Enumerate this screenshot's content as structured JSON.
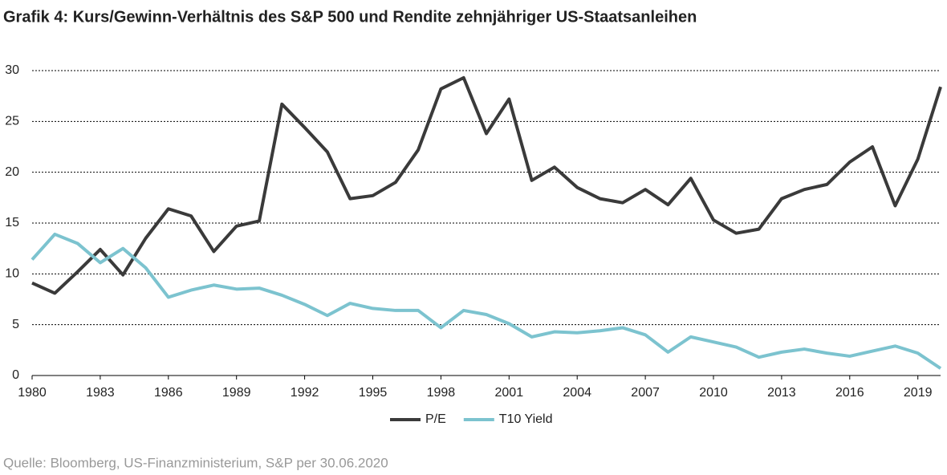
{
  "chart_data": {
    "type": "line",
    "title": "Grafik 4: Kurs/Gewinn-Verhältnis des S&P 500 und Rendite zehnjähriger US-Staatsanleihen",
    "source": "Quelle: Bloomberg, US-Finanzministerium, S&P per 30.06.2020",
    "x": [
      1980,
      1981,
      1982,
      1983,
      1984,
      1985,
      1986,
      1987,
      1988,
      1989,
      1990,
      1991,
      1992,
      1993,
      1994,
      1995,
      1996,
      1997,
      1998,
      1999,
      2000,
      2001,
      2002,
      2003,
      2004,
      2005,
      2006,
      2007,
      2008,
      2009,
      2010,
      2011,
      2012,
      2013,
      2014,
      2015,
      2016,
      2017,
      2018,
      2019,
      2020
    ],
    "series": [
      {
        "name": "P/E",
        "color": "#3a3a3a",
        "values": [
          9.1,
          8.1,
          10.2,
          12.4,
          9.9,
          13.5,
          16.4,
          15.7,
          12.2,
          14.7,
          15.2,
          26.7,
          24.4,
          22.0,
          17.4,
          17.7,
          19.0,
          22.2,
          28.2,
          29.3,
          23.8,
          27.2,
          19.2,
          20.5,
          18.5,
          17.4,
          17.0,
          18.3,
          16.8,
          19.4,
          15.3,
          14.0,
          14.4,
          17.4,
          18.3,
          18.8,
          21.0,
          22.5,
          16.7,
          21.3,
          28.4
        ]
      },
      {
        "name": "T10 Yield",
        "color": "#7cc3cf",
        "values": [
          11.4,
          13.9,
          13.0,
          11.1,
          12.5,
          10.6,
          7.7,
          8.4,
          8.9,
          8.5,
          8.6,
          7.9,
          7.0,
          5.9,
          7.1,
          6.6,
          6.4,
          6.4,
          4.7,
          6.4,
          6.0,
          5.1,
          3.8,
          4.3,
          4.2,
          4.4,
          4.7,
          4.0,
          2.3,
          3.8,
          3.3,
          2.8,
          1.8,
          2.3,
          2.6,
          2.2,
          1.9,
          2.4,
          2.9,
          2.2,
          0.7
        ]
      }
    ],
    "xlim": [
      1980,
      2020
    ],
    "xticks": [
      1980,
      1983,
      1986,
      1989,
      1992,
      1995,
      1998,
      2001,
      2004,
      2007,
      2010,
      2013,
      2016,
      2019
    ],
    "ylim": [
      0,
      30
    ],
    "yticks": [
      0,
      5,
      10,
      15,
      20,
      25,
      30
    ],
    "grid": true,
    "legend": "bottom"
  }
}
